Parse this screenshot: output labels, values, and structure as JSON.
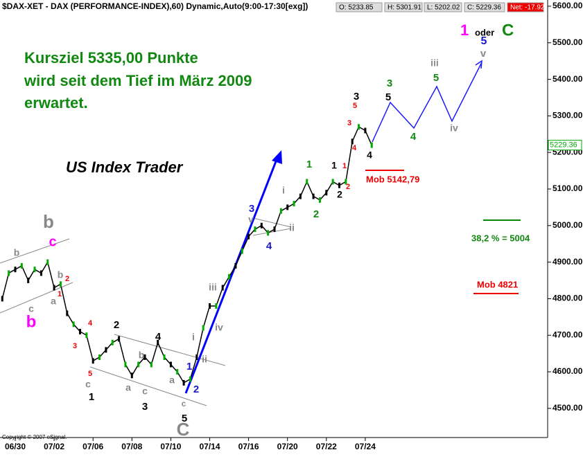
{
  "chart_data": {
    "type": "line",
    "title": "$DAX-XET - DAX (PERFORMANCE-INDEX),60) Dynamic,Auto(9:00-17:30[exg])",
    "quote": [
      "O: 5233.85",
      "H: 5301.91",
      "L: 5202.02",
      "C: 5229.36",
      "Net: -17.92"
    ],
    "last_price_label": "5229.36",
    "copyright": "Copyright © 2007 eSignal.",
    "categories": [
      null,
      null,
      "06/30",
      null,
      null,
      null,
      null,
      null,
      "07/02",
      null,
      null,
      null,
      null,
      null,
      "07/06",
      null,
      null,
      null,
      null,
      null,
      "07/08",
      null,
      null,
      null,
      null,
      null,
      "07/10",
      null,
      null,
      null,
      null,
      null,
      "07/14",
      null,
      null,
      null,
      null,
      null,
      "07/16",
      null,
      null,
      null,
      null,
      null,
      "07/20",
      null,
      null,
      null,
      null,
      null,
      "07/22",
      null,
      null,
      null,
      null,
      null,
      "07/24",
      null
    ],
    "series": [
      {
        "name": "DAX",
        "color": "#000000",
        "values": [
          4800,
          4870,
          4880,
          4890,
          4850,
          4880,
          4870,
          4900,
          4830,
          4840,
          4760,
          4730,
          4710,
          4700,
          4630,
          4640,
          4660,
          4680,
          4690,
          4620,
          4590,
          4620,
          4640,
          4620,
          4680,
          4640,
          4620,
          4600,
          4570,
          4580,
          4640,
          4720,
          4780,
          4780,
          4830,
          4860,
          4890,
          4930,
          4970,
          4990,
          5000,
          4980,
          4990,
          5040,
          5050,
          5060,
          5080,
          5120,
          5080,
          5070,
          5090,
          5120,
          5110,
          5120,
          5230,
          5270,
          5260,
          5220
        ]
      }
    ],
    "ylim": [
      4424,
      5617
    ],
    "yticks": [
      {
        "value": 4500,
        "label": "4500.00"
      },
      {
        "value": 4600,
        "label": "4600.00"
      },
      {
        "value": 4700,
        "label": "4700.00"
      },
      {
        "value": 4800,
        "label": "4800.00"
      },
      {
        "value": 4900,
        "label": "4900.00"
      },
      {
        "value": 5000,
        "label": "5000.00"
      },
      {
        "value": 5100,
        "label": "5100.00"
      },
      {
        "value": 5200,
        "label": "5200.00"
      },
      {
        "value": 5300,
        "label": "5300.00"
      },
      {
        "value": 5400,
        "label": "5400.00"
      },
      {
        "value": 5500,
        "label": "5500.00"
      },
      {
        "value": 5600,
        "label": "5600.00"
      }
    ],
    "grid": false,
    "annotations": [
      "Kursziel 5335,00 Punkte",
      "wird seit dem Tief im März 2009",
      "erwartet.",
      "US Index Trader",
      "Mob 5142,79",
      "38,2 % = 5004",
      "Mob 4821",
      "1",
      "oder",
      "C"
    ],
    "wave_labels": [
      "b",
      "c",
      "b",
      "b",
      "c",
      "a",
      "b",
      "2",
      "1",
      "4",
      "3",
      "5",
      "c",
      "1",
      "2",
      "a",
      "b",
      "c",
      "3",
      "4",
      "a",
      "c",
      "5",
      "C",
      "1",
      "2",
      "i",
      "ii",
      "iii",
      "iv",
      "v",
      "3",
      "4",
      "ii",
      "i",
      "1",
      "2",
      "1",
      "2",
      "1",
      "2",
      "3",
      "4",
      "5",
      "3",
      "4",
      "3",
      "5",
      "4",
      "5",
      "iii",
      "iv",
      "5",
      "v"
    ]
  }
}
